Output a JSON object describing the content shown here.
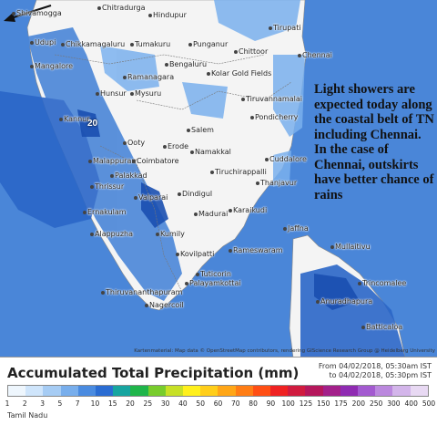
{
  "map": {
    "annotation": "Light showers are expected today along the coastal belt of TN including Chennai. In the case of Chennai, outskirts have better chance of rains",
    "marker_value": "20",
    "credits": "Kartenmaterial: Map data © OpenStreetMap contributors, rendering GIScience Research Group @ Heidelberg University",
    "cities": [
      {
        "name": "Shivamogga"
      },
      {
        "name": "Chitradurga"
      },
      {
        "name": "Hindupur"
      },
      {
        "name": "Tirupati"
      },
      {
        "name": "Udupi"
      },
      {
        "name": "Chikkamagaluru"
      },
      {
        "name": "Tumakuru"
      },
      {
        "name": "Punganur"
      },
      {
        "name": "Chittoor"
      },
      {
        "name": "Chennai"
      },
      {
        "name": "Mangalore"
      },
      {
        "name": "Bengaluru"
      },
      {
        "name": "Ramanagara"
      },
      {
        "name": "Kolar Gold Fields"
      },
      {
        "name": "Hunsur"
      },
      {
        "name": "Mysuru"
      },
      {
        "name": "Tiruvannamalai"
      },
      {
        "name": "Kannur"
      },
      {
        "name": "Pondicherry"
      },
      {
        "name": "Salem"
      },
      {
        "name": "Ooty"
      },
      {
        "name": "Erode"
      },
      {
        "name": "Namakkal"
      },
      {
        "name": "Cuddalore"
      },
      {
        "name": "Malappuram"
      },
      {
        "name": "Coimbatore"
      },
      {
        "name": "Tiruchirappalli"
      },
      {
        "name": "Palakkad"
      },
      {
        "name": "Thanjavur"
      },
      {
        "name": "Thrissur"
      },
      {
        "name": "Valparai"
      },
      {
        "name": "Dindigul"
      },
      {
        "name": "Ernakulam"
      },
      {
        "name": "Madurai"
      },
      {
        "name": "Karaikudi"
      },
      {
        "name": "Alappuzha"
      },
      {
        "name": "Kumily"
      },
      {
        "name": "Jaffna"
      },
      {
        "name": "Rameswaram"
      },
      {
        "name": "Kovilpatti"
      },
      {
        "name": "Mullaitivu"
      },
      {
        "name": "Tuticorin"
      },
      {
        "name": "Thiruvananthapuram"
      },
      {
        "name": "Palayamkottai"
      },
      {
        "name": "Trincomalee"
      },
      {
        "name": "Nagercoil"
      },
      {
        "name": "Anuradhapura"
      },
      {
        "name": "Batticaloa"
      }
    ]
  },
  "legend": {
    "title": "Accumulated Total Precipitation (mm)",
    "time_from": "From 04/02/2018, 05:30am IST",
    "time_to": "to 04/02/2018, 05:30pm IST",
    "region": "Tamil Nadu",
    "ticks": [
      "1",
      "2",
      "3",
      "5",
      "7",
      "10",
      "15",
      "20",
      "25",
      "30",
      "40",
      "50",
      "60",
      "70",
      "80",
      "90",
      "100",
      "125",
      "150",
      "175",
      "200",
      "250",
      "300",
      "400",
      "500"
    ],
    "colors": [
      "#eef6fd",
      "#cfe5fb",
      "#a6ccf4",
      "#78aeec",
      "#4a8be0",
      "#2a6cd2",
      "#17a5a0",
      "#1fb54a",
      "#78cc2c",
      "#c7e026",
      "#fff01c",
      "#ffce1a",
      "#ffa617",
      "#ff7d15",
      "#ff4f14",
      "#ef2222",
      "#d01b3f",
      "#b5175c",
      "#a3208a",
      "#8f2bb2",
      "#a35ad0",
      "#bb88de",
      "#d3b5ea",
      "#e8d9f3"
    ]
  }
}
